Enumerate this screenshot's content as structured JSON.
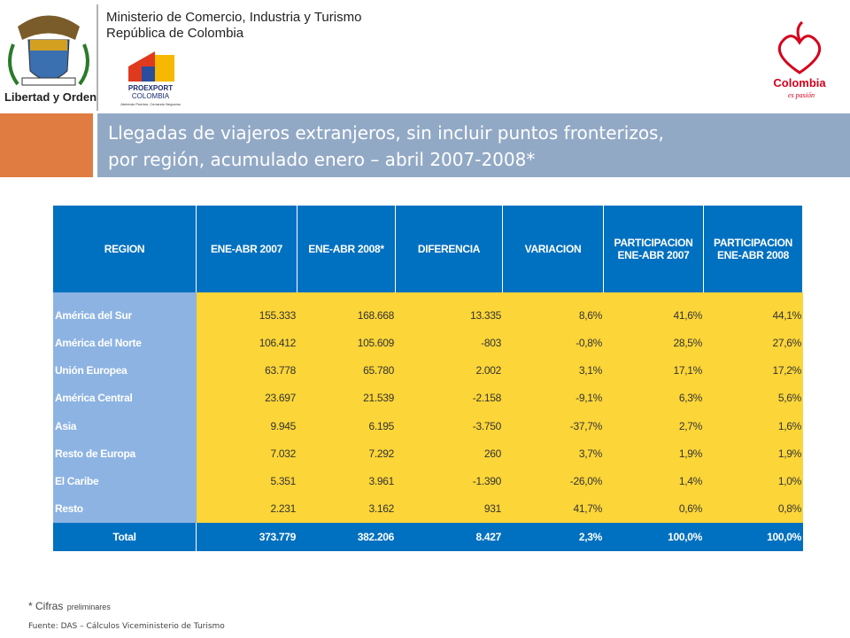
{
  "header": {
    "ministry": "Ministerio de Comercio, Industria y Turismo",
    "republic": "República de Colombia",
    "motto": "Libertad y Orden",
    "proexport": "PROEXPORT",
    "proexport_country": "COLOMBIA",
    "proexport_slogan": "Abriendo Puertos, Cerrando Negocios",
    "brand": "Colombia",
    "brand_slogan": "es pasión"
  },
  "title": {
    "line1": "Llegadas de viajeros extranjeros, sin incluir puntos fronterizos,",
    "line2": "por región, acumulado enero – abril 2007-2008*"
  },
  "table": {
    "columns": [
      "REGION",
      "ENE-ABR 2007",
      "ENE-ABR 2008*",
      "DIFERENCIA",
      "VARIACION",
      "PARTICIPACION ENE-ABR 2007",
      "PARTICIPACION ENE-ABR 2008"
    ],
    "rows": [
      [
        "América del Sur",
        "155.333",
        "168.668",
        "13.335",
        "8,6%",
        "41,6%",
        "44,1%"
      ],
      [
        "América del Norte",
        "106.412",
        "105.609",
        "-803",
        "-0,8%",
        "28,5%",
        "27,6%"
      ],
      [
        "Unión Europea",
        "63.778",
        "65.780",
        "2.002",
        "3,1%",
        "17,1%",
        "17,2%"
      ],
      [
        "América Central",
        "23.697",
        "21.539",
        "-2.158",
        "-9,1%",
        "6,3%",
        "5,6%"
      ],
      [
        "Asia",
        "9.945",
        "6.195",
        "-3.750",
        "-37,7%",
        "2,7%",
        "1,6%"
      ],
      [
        "Resto de Europa",
        "7.032",
        "7.292",
        "260",
        "3,7%",
        "1,9%",
        "1,9%"
      ],
      [
        "El Caribe",
        "5.351",
        "3.961",
        "-1.390",
        "-26,0%",
        "1,4%",
        "1,0%"
      ],
      [
        "Resto",
        "2.231",
        "3.162",
        "931",
        "41,7%",
        "0,6%",
        "0,8%"
      ]
    ],
    "total": [
      "Total",
      "373.779",
      "382.206",
      "8.427",
      "2,3%",
      "100,0%",
      "100,0%"
    ]
  },
  "footer": {
    "note_mark": "* Cifras",
    "note_rest": "preliminares",
    "source": "Fuente: DAS – Cálculos  Viceministerio de Turismo"
  }
}
